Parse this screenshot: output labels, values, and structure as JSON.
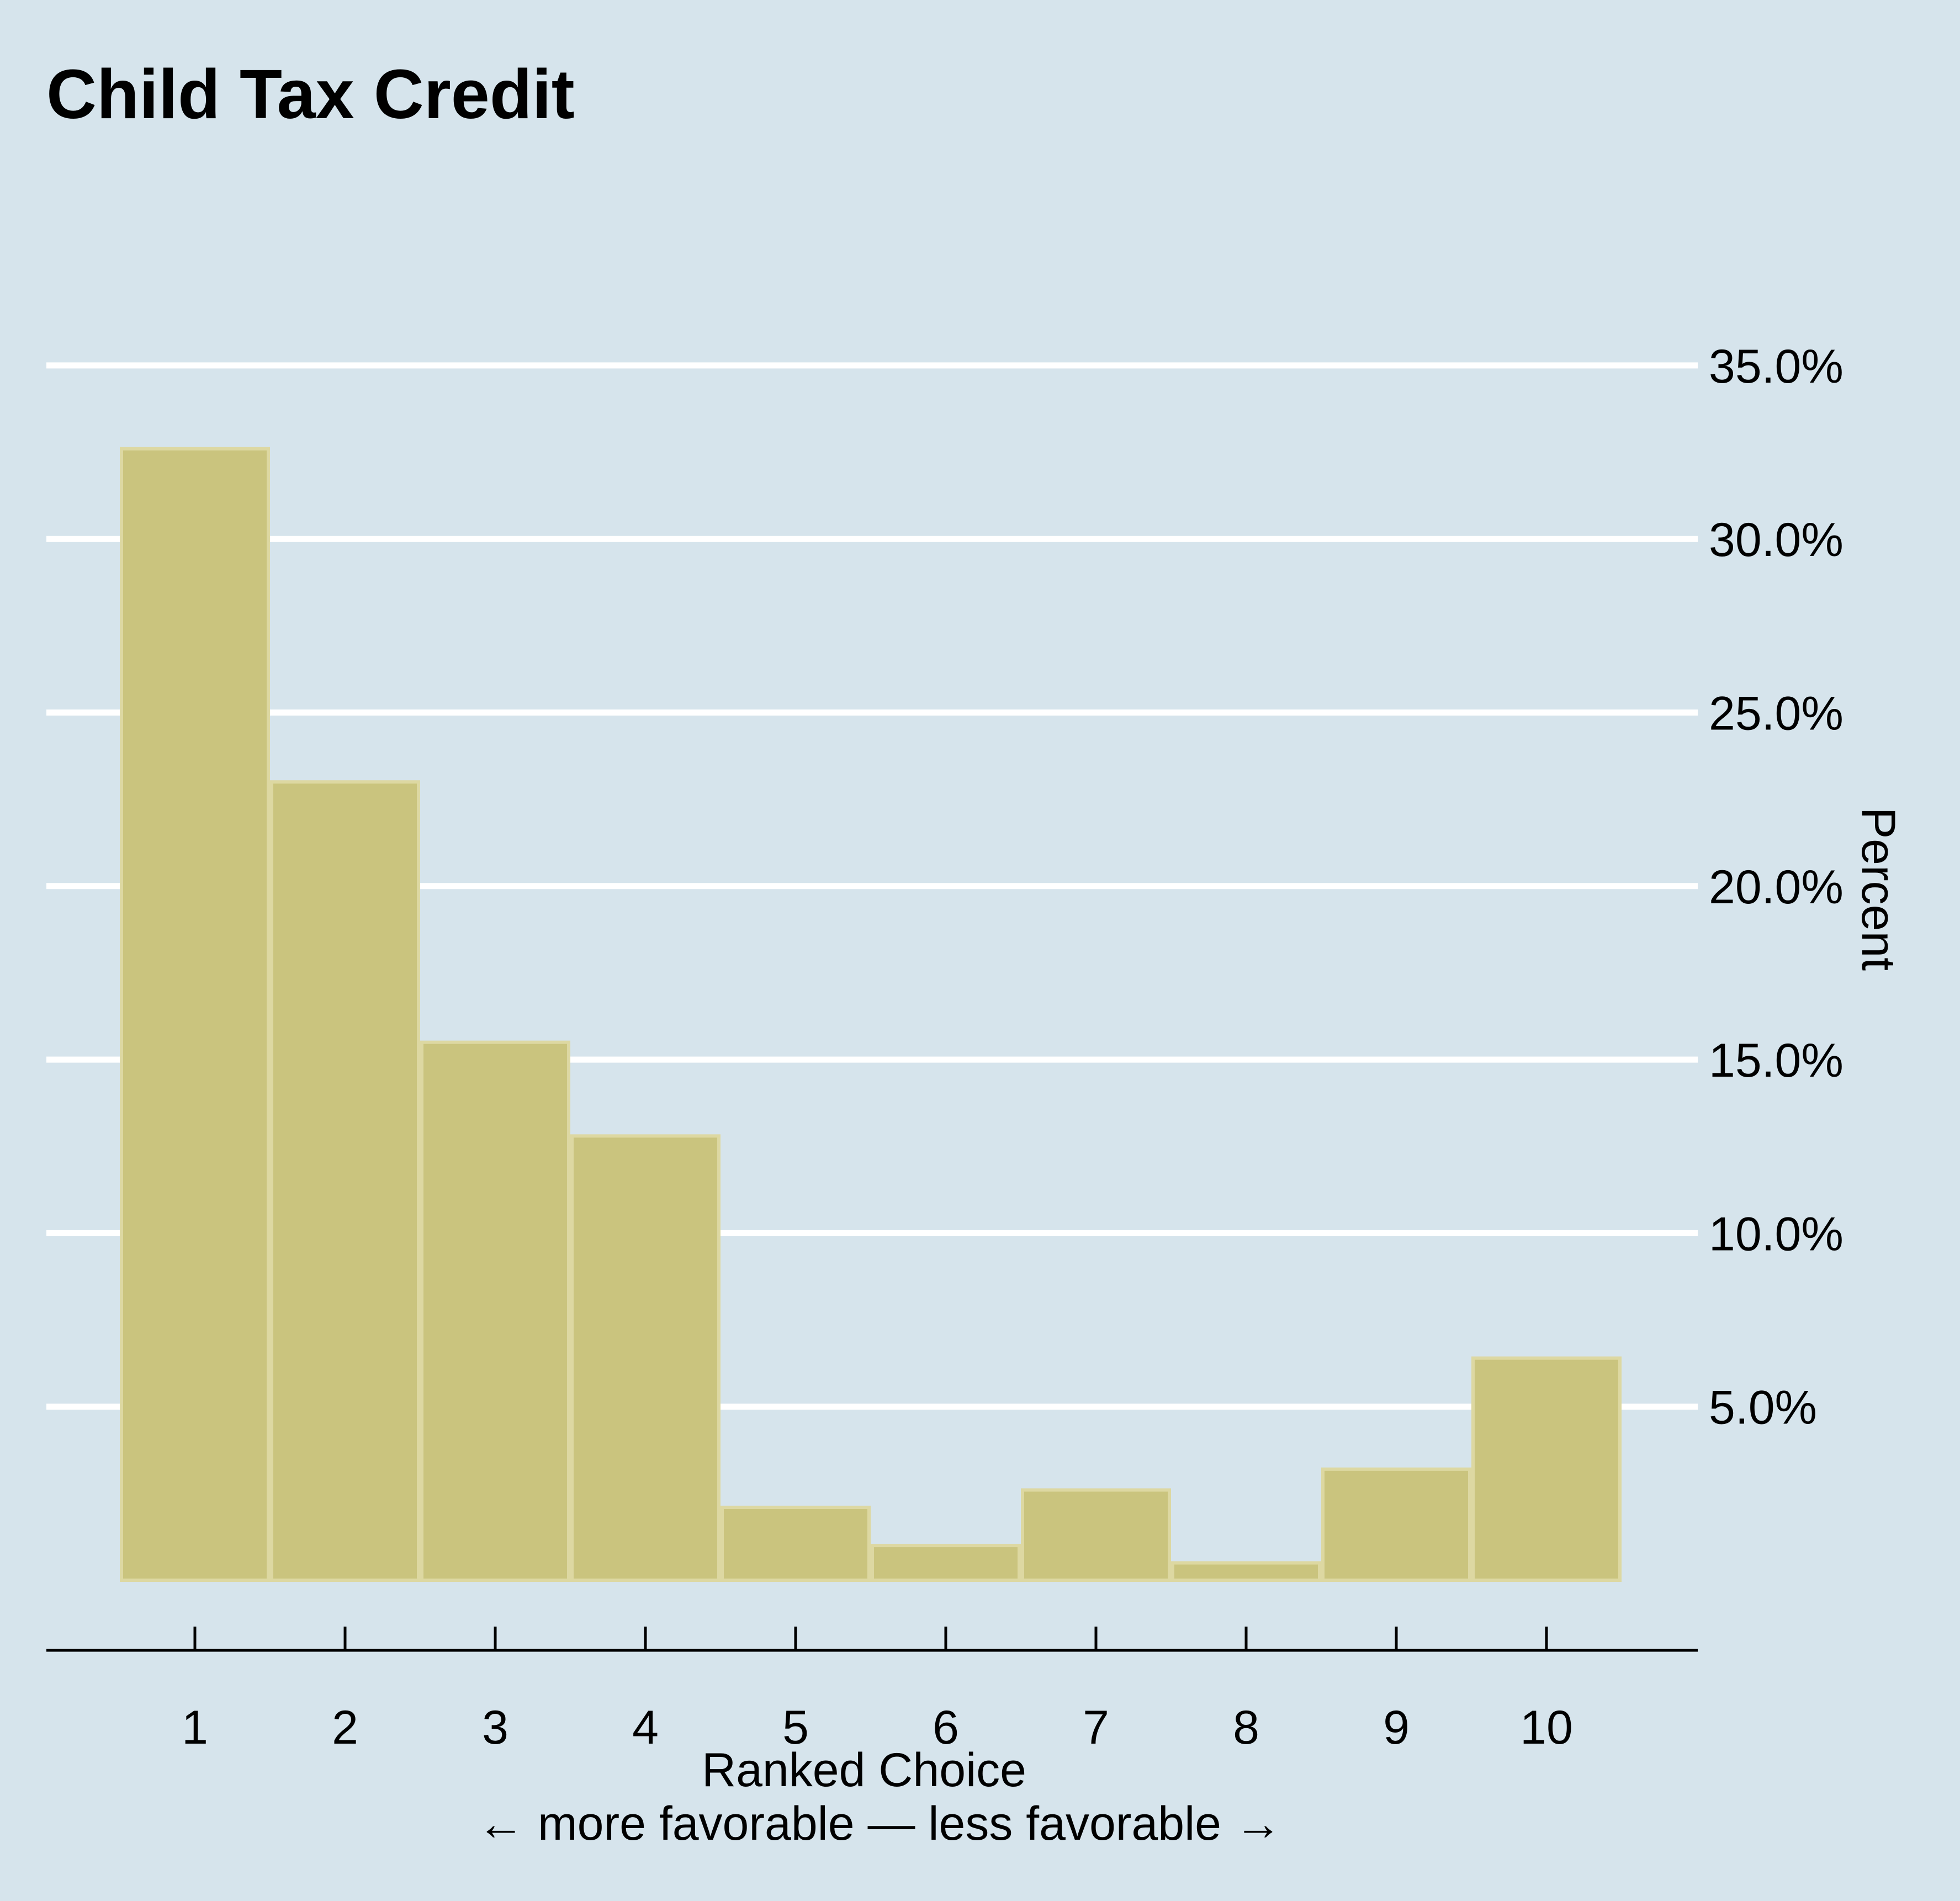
{
  "chart_data": {
    "type": "bar",
    "title": "Child Tax Credit",
    "xlabel": "Ranked Choice",
    "xlabel_note": "← more favorable — less favorable →",
    "ylabel": "Percent",
    "categories": [
      "1",
      "2",
      "3",
      "4",
      "5",
      "6",
      "7",
      "8",
      "9",
      "10"
    ],
    "values": [
      32.6,
      23.0,
      15.5,
      12.8,
      2.1,
      1.0,
      2.6,
      0.5,
      3.2,
      6.4
    ],
    "ylim": [
      0,
      35
    ],
    "yticks": [
      5,
      10,
      15,
      20,
      25,
      30,
      35
    ],
    "ytick_labels": [
      "5.0%",
      "10.0%",
      "15.0%",
      "20.0%",
      "25.0%",
      "30.0%",
      "35.0%"
    ],
    "grid": true,
    "y_axis_side": "right",
    "colors": {
      "background": "#d6e4ec",
      "bar_fill": "#cac47e",
      "bar_edge": "#ddd8a2",
      "grid": "#ffffff",
      "axis": "#000000"
    }
  }
}
